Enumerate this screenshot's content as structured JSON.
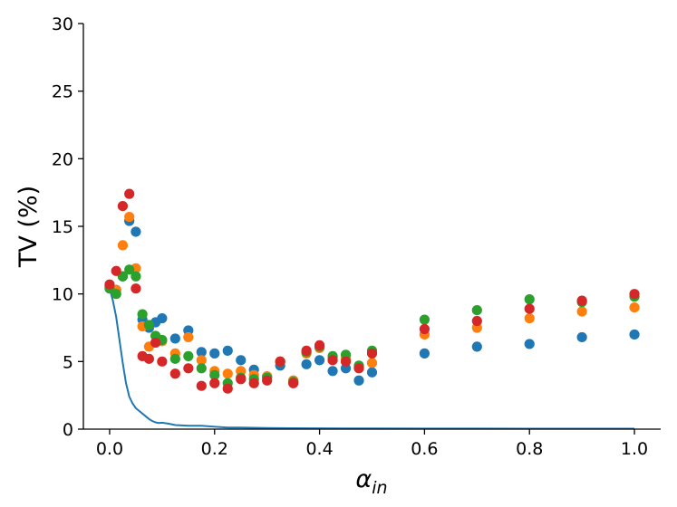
{
  "chart_data": {
    "type": "scatter",
    "title": "",
    "xlabel_base": "α",
    "xlabel_sub": "in",
    "ylabel": "TV (%)",
    "xlim": [
      -0.05,
      1.05
    ],
    "ylim": [
      0,
      30
    ],
    "xticks": [
      0.0,
      0.2,
      0.4,
      0.6,
      0.8,
      1.0
    ],
    "xtick_labels": [
      "0.0",
      "0.2",
      "0.4",
      "0.6",
      "0.8",
      "1.0"
    ],
    "yticks": [
      0,
      5,
      10,
      15,
      20,
      25,
      30
    ],
    "ytick_labels": [
      "0",
      "5",
      "10",
      "15",
      "20",
      "25",
      "30"
    ],
    "grid": false,
    "legend": "none",
    "series": [
      {
        "color": "#1f77b4",
        "points": [
          [
            0.0,
            10.5
          ],
          [
            0.0125,
            10.3
          ],
          [
            0.025,
            11.3
          ],
          [
            0.0375,
            15.4
          ],
          [
            0.05,
            14.6
          ],
          [
            0.0625,
            8.1
          ],
          [
            0.075,
            7.5
          ],
          [
            0.0875,
            7.9
          ],
          [
            0.1,
            8.2
          ],
          [
            0.125,
            6.7
          ],
          [
            0.15,
            7.3
          ],
          [
            0.175,
            5.7
          ],
          [
            0.2,
            5.6
          ],
          [
            0.225,
            5.8
          ],
          [
            0.25,
            5.1
          ],
          [
            0.275,
            4.4
          ],
          [
            0.3,
            3.9
          ],
          [
            0.325,
            4.7
          ],
          [
            0.35,
            3.5
          ],
          [
            0.375,
            4.8
          ],
          [
            0.4,
            5.1
          ],
          [
            0.425,
            4.3
          ],
          [
            0.45,
            4.5
          ],
          [
            0.475,
            3.6
          ],
          [
            0.5,
            4.2
          ],
          [
            0.6,
            5.6
          ],
          [
            0.7,
            6.1
          ],
          [
            0.8,
            6.3
          ],
          [
            0.9,
            6.8
          ],
          [
            1.0,
            7.0
          ]
        ]
      },
      {
        "color": "#ff7f0e",
        "points": [
          [
            0.0,
            10.6
          ],
          [
            0.0125,
            10.3
          ],
          [
            0.025,
            13.6
          ],
          [
            0.0375,
            15.7
          ],
          [
            0.05,
            11.9
          ],
          [
            0.0625,
            7.6
          ],
          [
            0.075,
            6.1
          ],
          [
            0.0875,
            6.4
          ],
          [
            0.1,
            6.5
          ],
          [
            0.125,
            5.6
          ],
          [
            0.15,
            6.8
          ],
          [
            0.175,
            5.1
          ],
          [
            0.2,
            4.3
          ],
          [
            0.225,
            4.1
          ],
          [
            0.25,
            4.3
          ],
          [
            0.275,
            4.0
          ],
          [
            0.3,
            3.9
          ],
          [
            0.325,
            5.0
          ],
          [
            0.35,
            3.6
          ],
          [
            0.375,
            5.6
          ],
          [
            0.4,
            6.0
          ],
          [
            0.425,
            5.3
          ],
          [
            0.45,
            5.2
          ],
          [
            0.475,
            4.6
          ],
          [
            0.5,
            4.9
          ],
          [
            0.6,
            7.0
          ],
          [
            0.7,
            7.5
          ],
          [
            0.8,
            8.2
          ],
          [
            0.9,
            8.7
          ],
          [
            1.0,
            9.0
          ]
        ]
      },
      {
        "color": "#2ca02c",
        "points": [
          [
            0.0,
            10.4
          ],
          [
            0.0125,
            10.0
          ],
          [
            0.025,
            11.3
          ],
          [
            0.0375,
            11.8
          ],
          [
            0.05,
            11.3
          ],
          [
            0.0625,
            8.5
          ],
          [
            0.075,
            7.7
          ],
          [
            0.0875,
            6.9
          ],
          [
            0.1,
            6.6
          ],
          [
            0.125,
            5.2
          ],
          [
            0.15,
            5.4
          ],
          [
            0.175,
            4.5
          ],
          [
            0.2,
            4.0
          ],
          [
            0.225,
            3.4
          ],
          [
            0.25,
            3.8
          ],
          [
            0.275,
            3.7
          ],
          [
            0.3,
            3.8
          ],
          [
            0.325,
            5.0
          ],
          [
            0.35,
            3.5
          ],
          [
            0.375,
            5.7
          ],
          [
            0.4,
            6.1
          ],
          [
            0.425,
            5.4
          ],
          [
            0.45,
            5.5
          ],
          [
            0.475,
            4.7
          ],
          [
            0.5,
            5.8
          ],
          [
            0.6,
            8.1
          ],
          [
            0.7,
            8.8
          ],
          [
            0.8,
            9.6
          ],
          [
            0.9,
            9.4
          ],
          [
            1.0,
            9.8
          ]
        ]
      },
      {
        "color": "#d62728",
        "points": [
          [
            0.0,
            10.7
          ],
          [
            0.0125,
            11.7
          ],
          [
            0.025,
            16.5
          ],
          [
            0.0375,
            17.4
          ],
          [
            0.05,
            10.4
          ],
          [
            0.0625,
            5.4
          ],
          [
            0.075,
            5.2
          ],
          [
            0.0875,
            6.4
          ],
          [
            0.1,
            5.0
          ],
          [
            0.125,
            4.1
          ],
          [
            0.15,
            4.5
          ],
          [
            0.175,
            3.2
          ],
          [
            0.2,
            3.4
          ],
          [
            0.225,
            3.0
          ],
          [
            0.25,
            3.7
          ],
          [
            0.275,
            3.4
          ],
          [
            0.3,
            3.6
          ],
          [
            0.325,
            5.0
          ],
          [
            0.35,
            3.4
          ],
          [
            0.375,
            5.8
          ],
          [
            0.4,
            6.2
          ],
          [
            0.425,
            5.1
          ],
          [
            0.45,
            5.0
          ],
          [
            0.475,
            4.5
          ],
          [
            0.5,
            5.6
          ],
          [
            0.6,
            7.4
          ],
          [
            0.7,
            8.0
          ],
          [
            0.8,
            8.9
          ],
          [
            0.9,
            9.5
          ],
          [
            1.0,
            10.0
          ]
        ]
      }
    ],
    "line": {
      "color": "#1f77b4",
      "points": [
        [
          0.0,
          10.4
        ],
        [
          0.00625,
          9.5
        ],
        [
          0.0125,
          8.3
        ],
        [
          0.01875,
          6.6
        ],
        [
          0.025,
          4.9
        ],
        [
          0.03125,
          3.4
        ],
        [
          0.0375,
          2.4
        ],
        [
          0.04375,
          1.9
        ],
        [
          0.05,
          1.55
        ],
        [
          0.05625,
          1.35
        ],
        [
          0.0625,
          1.15
        ],
        [
          0.06875,
          0.95
        ],
        [
          0.075,
          0.75
        ],
        [
          0.08125,
          0.6
        ],
        [
          0.0875,
          0.5
        ],
        [
          0.09375,
          0.45
        ],
        [
          0.1,
          0.48
        ],
        [
          0.1125,
          0.4
        ],
        [
          0.125,
          0.3
        ],
        [
          0.15,
          0.25
        ],
        [
          0.175,
          0.25
        ],
        [
          0.2,
          0.18
        ],
        [
          0.225,
          0.12
        ],
        [
          0.25,
          0.12
        ],
        [
          0.275,
          0.1
        ],
        [
          0.3,
          0.08
        ],
        [
          0.35,
          0.07
        ],
        [
          0.4,
          0.06
        ],
        [
          0.45,
          0.05
        ],
        [
          0.5,
          0.05
        ],
        [
          0.6,
          0.04
        ],
        [
          0.7,
          0.04
        ],
        [
          0.8,
          0.03
        ],
        [
          0.9,
          0.03
        ],
        [
          1.0,
          0.03
        ]
      ]
    }
  }
}
